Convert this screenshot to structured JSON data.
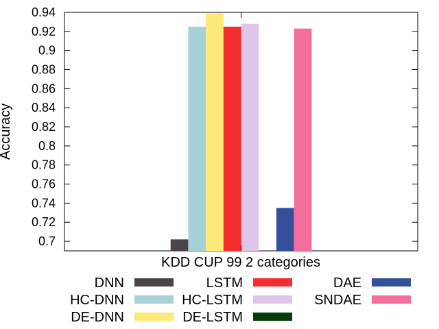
{
  "chart_data": {
    "type": "bar",
    "title": "",
    "xlabel": "",
    "ylabel": "Accuracy",
    "categories": [
      "KDD CUP 99 2 categories"
    ],
    "ylim": [
      0.69,
      0.94
    ],
    "yticks": [
      0.7,
      0.72,
      0.74,
      0.76,
      0.78,
      0.8,
      0.82,
      0.84,
      0.86,
      0.88,
      0.9,
      0.92,
      0.94
    ],
    "ytick_labels": [
      "0.7",
      "0.72",
      "0.74",
      "0.76",
      "0.78",
      "0.8",
      "0.82",
      "0.84",
      "0.86",
      "0.88",
      "0.9",
      "0.92",
      "0.94"
    ],
    "grid": false,
    "legend_position": "bottom",
    "series": [
      {
        "name": "DNN",
        "values": [
          0.702
        ],
        "color": "#4a4347"
      },
      {
        "name": "HC-DNN",
        "values": [
          0.925
        ],
        "color": "#a6d1d6"
      },
      {
        "name": "DE-DNN",
        "values": [
          0.939
        ],
        "color": "#fde87a"
      },
      {
        "name": "LSTM",
        "values": [
          0.925
        ],
        "color": "#f32d2d"
      },
      {
        "name": "HC-LSTM",
        "values": [
          0.928
        ],
        "color": "#dfc5e7"
      },
      {
        "name": "DE-LSTM",
        "values": [
          null
        ],
        "color": "#0a3c0a"
      },
      {
        "name": "DAE",
        "values": [
          0.735
        ],
        "color": "#34509a"
      },
      {
        "name": "SNDAE",
        "values": [
          0.923
        ],
        "color": "#f36e9d"
      }
    ]
  }
}
